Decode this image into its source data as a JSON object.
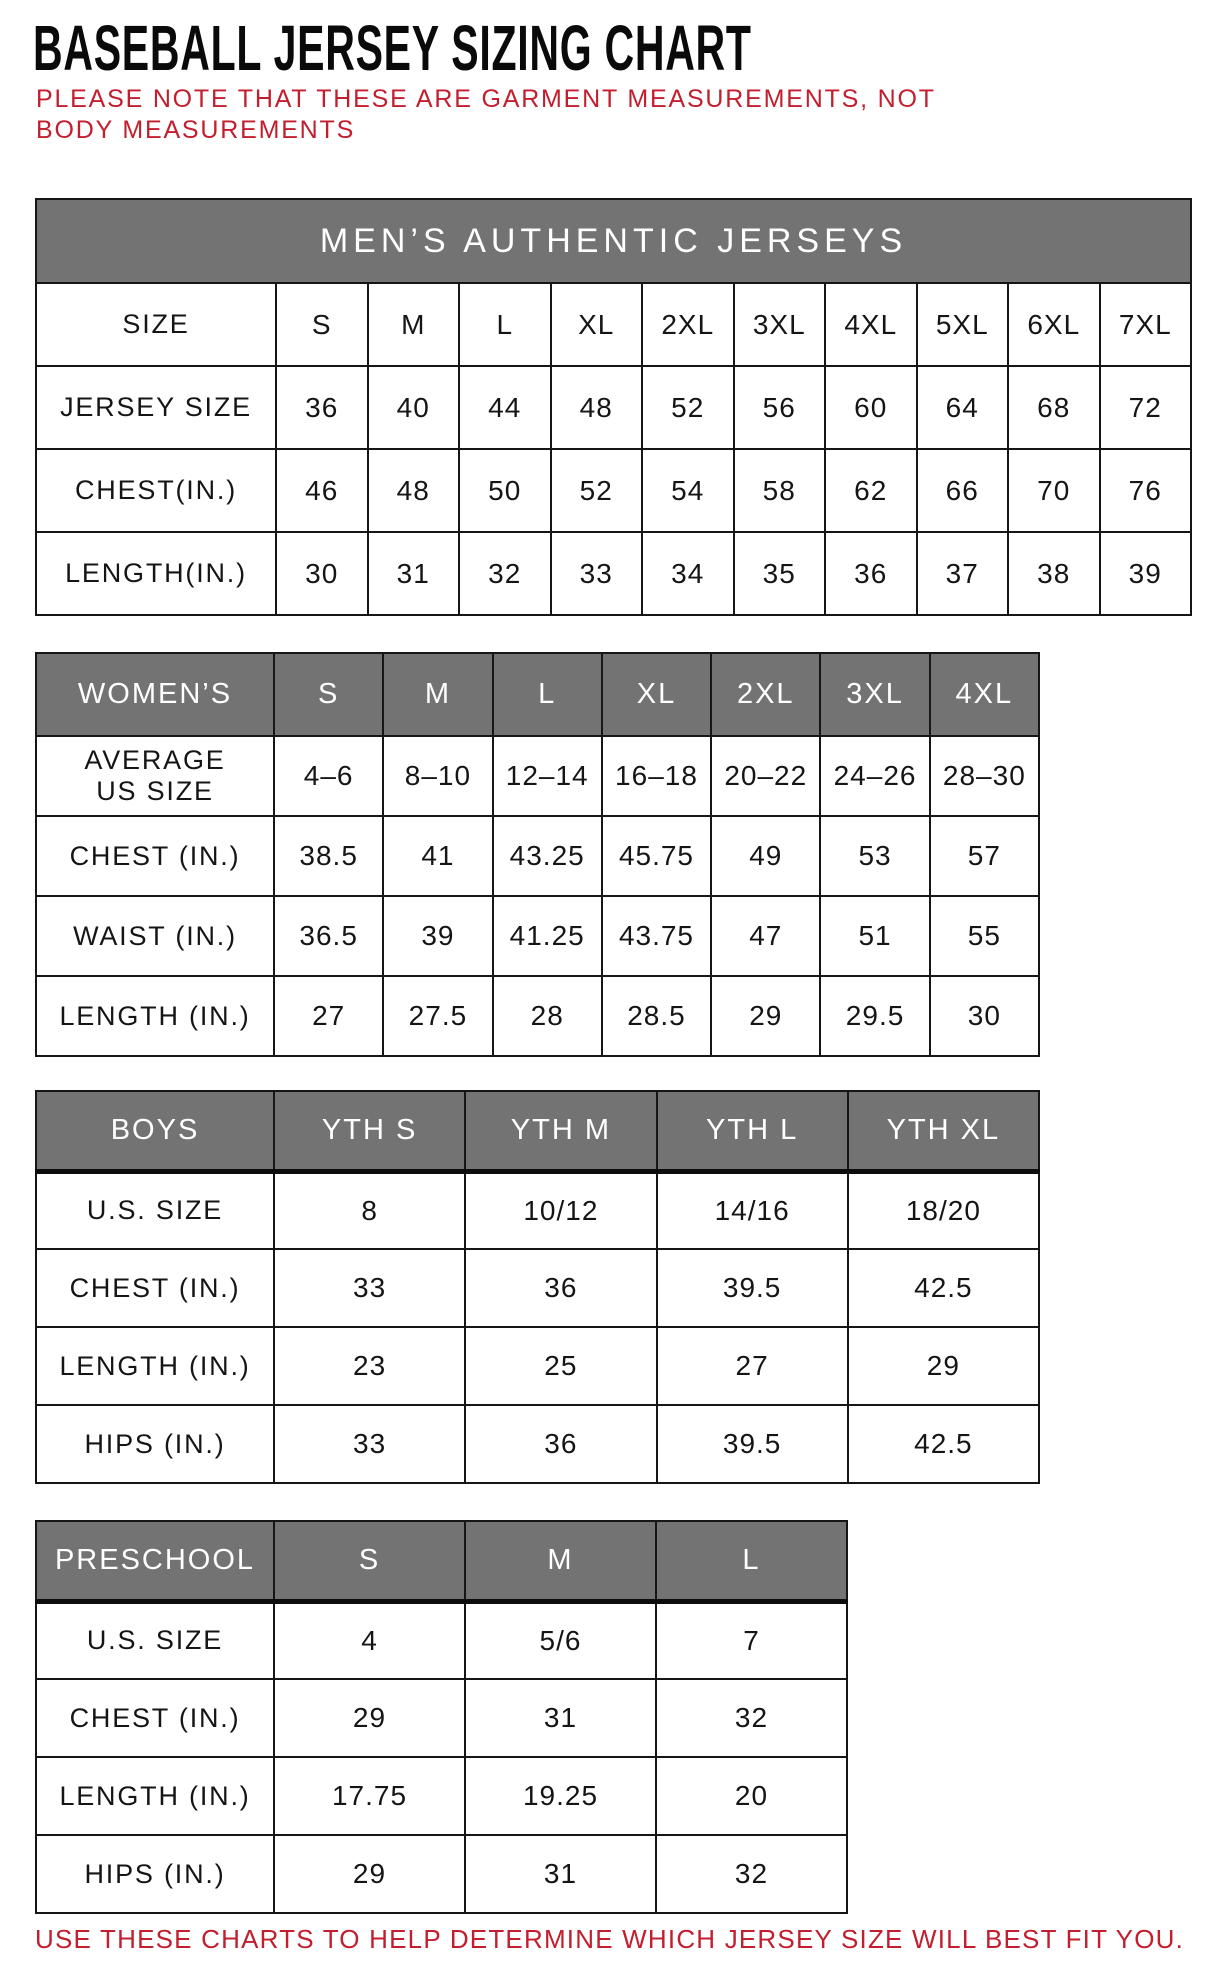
{
  "title": "BASEBALL JERSEY SIZING CHART",
  "note": "PLEASE NOTE THAT THESE ARE GARMENT MEASUREMENTS, NOT BODY MEASUREMENTS",
  "footer": "USE THESE CHARTS TO HELP DETERMINE WHICH JERSEY SIZE WILL BEST FIT YOU.",
  "colors": {
    "accent_red": "#c21e2e",
    "header_gray": "#737373"
  },
  "tables": {
    "men": {
      "title": "MEN’S AUTHENTIC JERSEYS",
      "rows": [
        [
          "SIZE",
          "S",
          "M",
          "L",
          "XL",
          "2XL",
          "3XL",
          "4XL",
          "5XL",
          "6XL",
          "7XL"
        ],
        [
          "JERSEY SIZE",
          "36",
          "40",
          "44",
          "48",
          "52",
          "56",
          "60",
          "64",
          "68",
          "72"
        ],
        [
          "CHEST(IN.)",
          "46",
          "48",
          "50",
          "52",
          "54",
          "58",
          "62",
          "66",
          "70",
          "76"
        ],
        [
          "LENGTH(IN.)",
          "30",
          "31",
          "32",
          "33",
          "34",
          "35",
          "36",
          "37",
          "38",
          "39"
        ]
      ]
    },
    "women": {
      "header": [
        "WOMEN’S",
        "S",
        "M",
        "L",
        "XL",
        "2XL",
        "3XL",
        "4XL"
      ],
      "rows": [
        [
          "AVERAGE\nUS SIZE",
          "4–6",
          "8–10",
          "12–14",
          "16–18",
          "20–22",
          "24–26",
          "28–30"
        ],
        [
          "CHEST (IN.)",
          "38.5",
          "41",
          "43.25",
          "45.75",
          "49",
          "53",
          "57"
        ],
        [
          "WAIST (IN.)",
          "36.5",
          "39",
          "41.25",
          "43.75",
          "47",
          "51",
          "55"
        ],
        [
          "LENGTH (IN.)",
          "27",
          "27.5",
          "28",
          "28.5",
          "29",
          "29.5",
          "30"
        ]
      ]
    },
    "boys": {
      "header": [
        "BOYS",
        "YTH S",
        "YTH M",
        "YTH L",
        "YTH XL"
      ],
      "rows": [
        [
          "U.S. SIZE",
          "8",
          "10/12",
          "14/16",
          "18/20"
        ],
        [
          "CHEST (IN.)",
          "33",
          "36",
          "39.5",
          "42.5"
        ],
        [
          "LENGTH (IN.)",
          "23",
          "25",
          "27",
          "29"
        ],
        [
          "HIPS (IN.)",
          "33",
          "36",
          "39.5",
          "42.5"
        ]
      ]
    },
    "preschool": {
      "header": [
        "PRESCHOOL",
        "S",
        "M",
        "L"
      ],
      "rows": [
        [
          "U.S. SIZE",
          "4",
          "5/6",
          "7"
        ],
        [
          "CHEST (IN.)",
          "29",
          "31",
          "32"
        ],
        [
          "LENGTH (IN.)",
          "17.75",
          "19.25",
          "20"
        ],
        [
          "HIPS (IN.)",
          "29",
          "31",
          "32"
        ]
      ]
    }
  }
}
